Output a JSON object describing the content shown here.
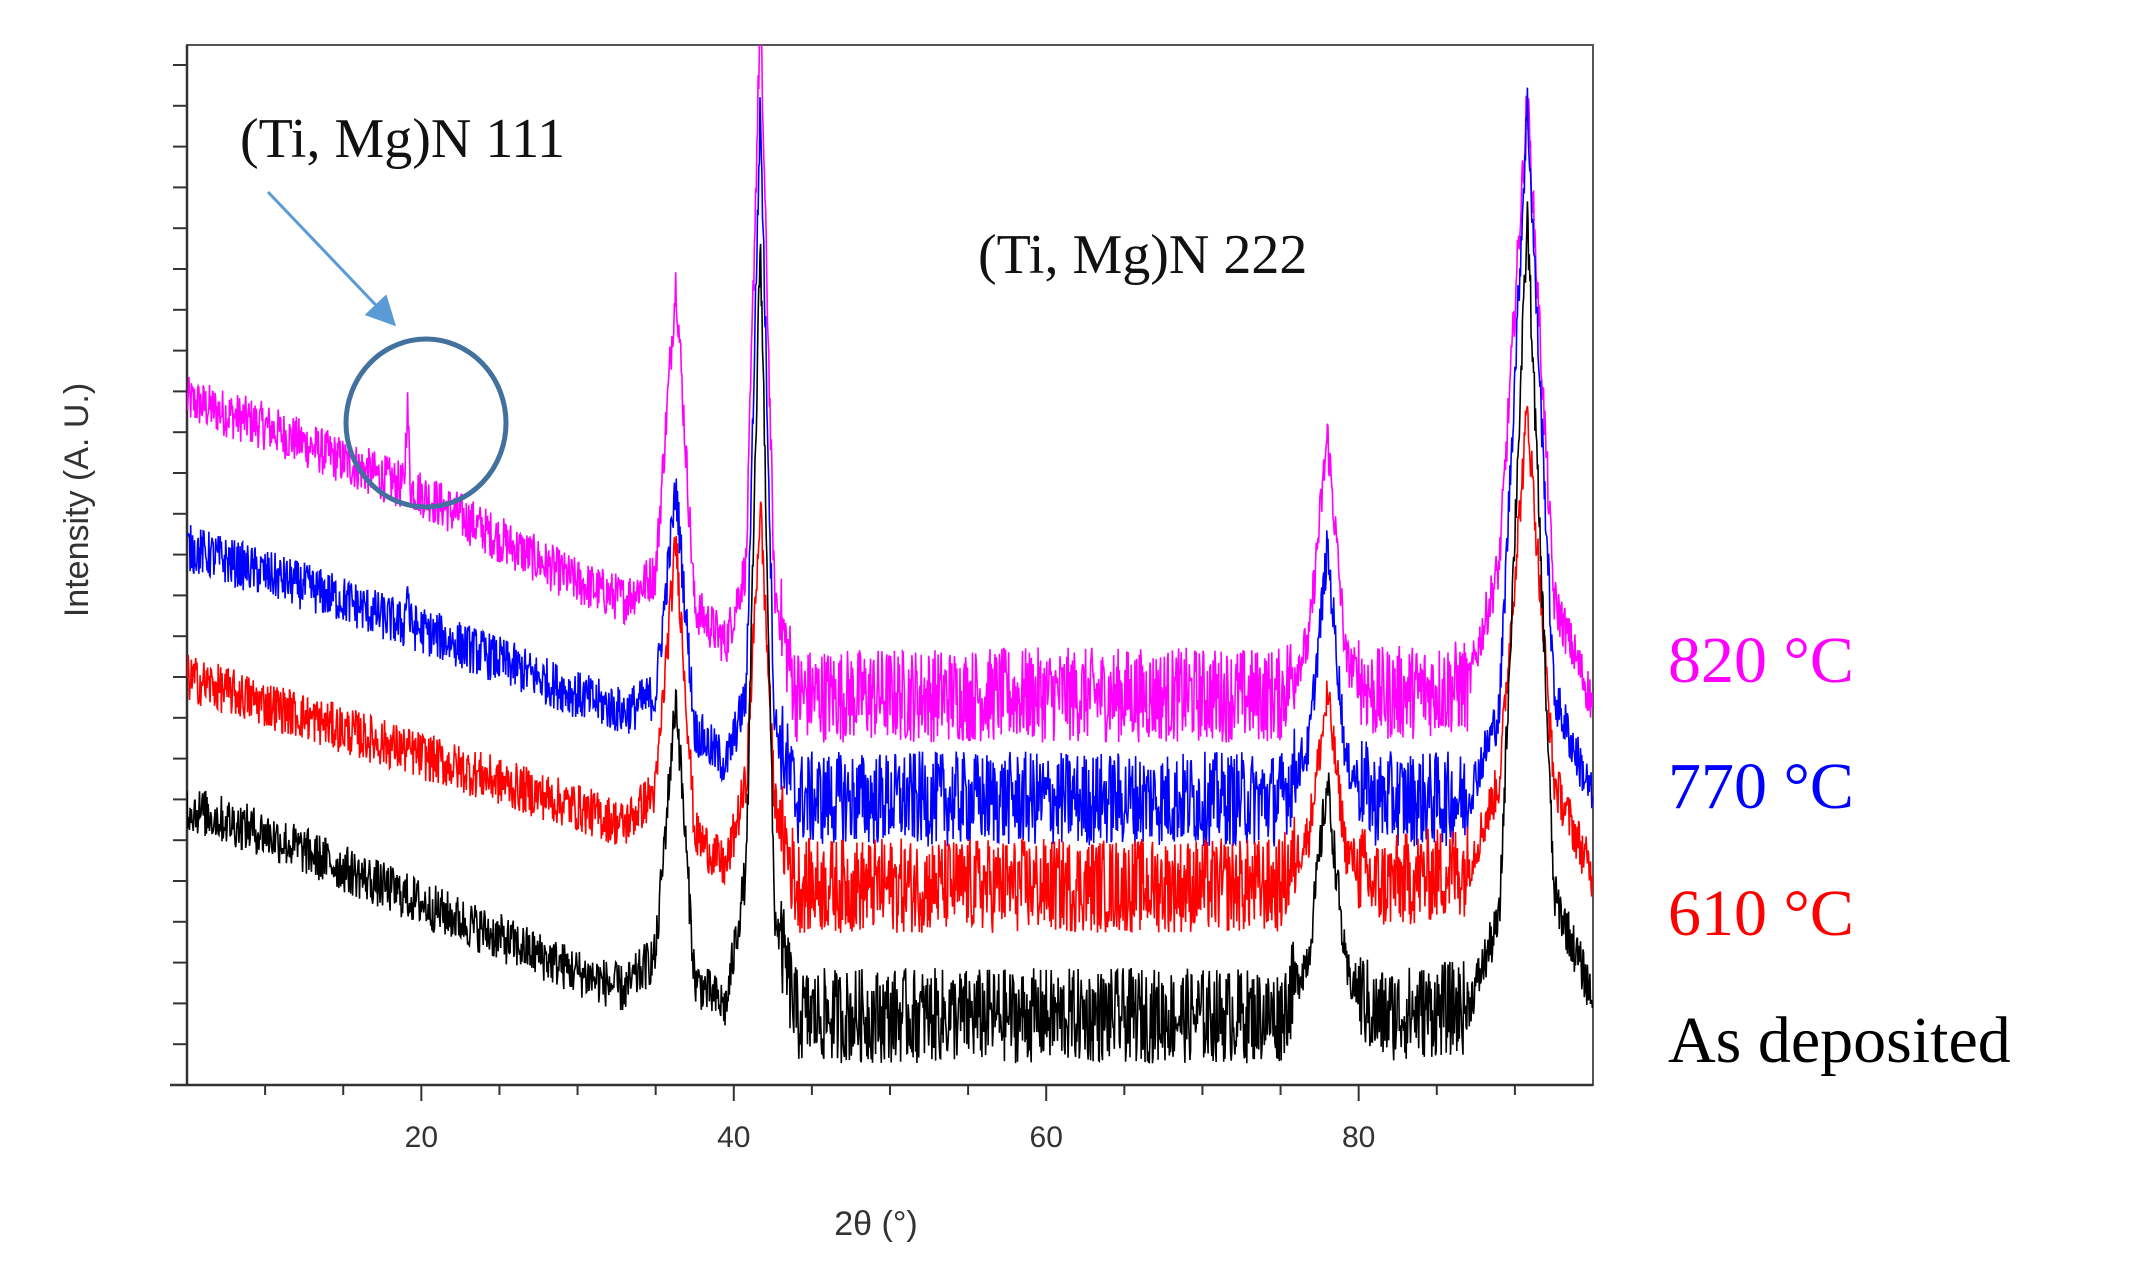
{
  "chart_data": {
    "type": "line",
    "title": "",
    "xlabel": "2θ (°)",
    "ylabel": "Intensity (A. U.)",
    "xlim": [
      5,
      95
    ],
    "ylim": [
      0,
      12
    ],
    "x_ticks": [
      20,
      40,
      60,
      80
    ],
    "x_tick_labels": [
      "20",
      "40",
      "60",
      "80"
    ],
    "grid": false,
    "series": [
      {
        "name": "As deposited",
        "color": "#000000",
        "offset": 0.0,
        "points": [
          [
            5,
            3.2
          ],
          [
            10,
            2.9
          ],
          [
            15,
            2.5
          ],
          [
            20,
            2.1
          ],
          [
            25,
            1.7
          ],
          [
            30,
            1.3
          ],
          [
            33,
            1.1
          ],
          [
            35,
            1.5
          ],
          [
            36.3,
            4.5
          ],
          [
            37.5,
            1.2
          ],
          [
            39.5,
            0.9
          ],
          [
            40.8,
            2.5
          ],
          [
            41.7,
            9.8
          ],
          [
            42.6,
            2.0
          ],
          [
            44,
            0.8
          ],
          [
            55,
            0.8
          ],
          [
            65,
            0.8
          ],
          [
            75,
            0.8
          ],
          [
            76.8,
            1.5
          ],
          [
            78,
            3.5
          ],
          [
            79.2,
            1.3
          ],
          [
            81,
            0.8
          ],
          [
            87,
            0.9
          ],
          [
            89,
            1.9
          ],
          [
            90.8,
            10.0
          ],
          [
            92.5,
            2.2
          ],
          [
            95,
            1.0
          ]
        ]
      },
      {
        "name": "610 °C",
        "color": "#ff0000",
        "offset": 1.5,
        "points": [
          [
            5,
            3.2
          ],
          [
            10,
            2.9
          ],
          [
            15,
            2.6
          ],
          [
            20,
            2.3
          ],
          [
            25,
            2.0
          ],
          [
            30,
            1.7
          ],
          [
            33,
            1.5
          ],
          [
            35,
            1.9
          ],
          [
            36.3,
            4.8
          ],
          [
            37.5,
            1.4
          ],
          [
            39.5,
            1.0
          ],
          [
            40.8,
            2.0
          ],
          [
            41.7,
            5.2
          ],
          [
            42.6,
            1.8
          ],
          [
            44,
            0.8
          ],
          [
            55,
            0.8
          ],
          [
            65,
            0.8
          ],
          [
            75,
            0.8
          ],
          [
            76.8,
            1.4
          ],
          [
            78,
            3.0
          ],
          [
            79.2,
            1.2
          ],
          [
            81,
            0.8
          ],
          [
            87,
            1.0
          ],
          [
            89,
            2.0
          ],
          [
            90.8,
            6.3
          ],
          [
            92.5,
            2.0
          ],
          [
            95,
            0.9
          ]
        ]
      },
      {
        "name": "770 °C",
        "color": "#0000ff",
        "offset": 2.5,
        "points": [
          [
            5,
            3.7
          ],
          [
            10,
            3.4
          ],
          [
            15,
            3.1
          ],
          [
            18.9,
            2.8
          ],
          [
            19.1,
            3.3
          ],
          [
            19.3,
            2.8
          ],
          [
            25,
            2.4
          ],
          [
            30,
            2.0
          ],
          [
            33,
            1.8
          ],
          [
            35,
            2.0
          ],
          [
            36.3,
            4.4
          ],
          [
            37.5,
            1.6
          ],
          [
            39.5,
            1.2
          ],
          [
            40.8,
            2.0
          ],
          [
            41.7,
            8.8
          ],
          [
            42.6,
            1.7
          ],
          [
            44,
            0.8
          ],
          [
            55,
            0.8
          ],
          [
            65,
            0.8
          ],
          [
            75,
            0.8
          ],
          [
            76.8,
            1.4
          ],
          [
            78,
            3.7
          ],
          [
            79.2,
            1.2
          ],
          [
            81,
            0.8
          ],
          [
            87,
            0.8
          ],
          [
            89,
            1.8
          ],
          [
            90.8,
            8.8
          ],
          [
            92.5,
            2.0
          ],
          [
            95,
            0.8
          ]
        ]
      },
      {
        "name": "820 °C",
        "color": "#ff00ff",
        "offset": 3.6,
        "points": [
          [
            5,
            4.3
          ],
          [
            10,
            4.0
          ],
          [
            15,
            3.6
          ],
          [
            18.9,
            3.3
          ],
          [
            19.1,
            4.3
          ],
          [
            19.3,
            3.3
          ],
          [
            25,
            2.7
          ],
          [
            30,
            2.2
          ],
          [
            33,
            2.0
          ],
          [
            35,
            2.3
          ],
          [
            36.3,
            5.7
          ],
          [
            37.5,
            1.9
          ],
          [
            39.5,
            1.5
          ],
          [
            40.8,
            2.4
          ],
          [
            41.7,
            8.8
          ],
          [
            42.6,
            2.1
          ],
          [
            44,
            0.9
          ],
          [
            55,
            0.9
          ],
          [
            65,
            0.9
          ],
          [
            75,
            0.9
          ],
          [
            76.8,
            1.5
          ],
          [
            78,
            3.9
          ],
          [
            79.2,
            1.3
          ],
          [
            81,
            0.9
          ],
          [
            87,
            1.0
          ],
          [
            89,
            2.4
          ],
          [
            90.8,
            7.8
          ],
          [
            92.5,
            2.0
          ],
          [
            95,
            0.8
          ]
        ]
      }
    ],
    "annotations": [
      {
        "text": "(Ti, Mg)N 111",
        "target_x": 19.1,
        "marker": "ellipse-and-arrow"
      },
      {
        "text": "(Ti, Mg)N 222",
        "target_x": 78
      }
    ],
    "legend_position": "right",
    "legend": [
      {
        "label": "820 °C",
        "color": "#ff00ff"
      },
      {
        "label": "770 °C",
        "color": "#0000ff"
      },
      {
        "label": "610 °C",
        "color": "#ff0000"
      },
      {
        "label": "As deposited",
        "color": "#000000"
      }
    ],
    "accent_arrow_color": "#5b9bd5",
    "ellipse_color": "#41719c"
  }
}
